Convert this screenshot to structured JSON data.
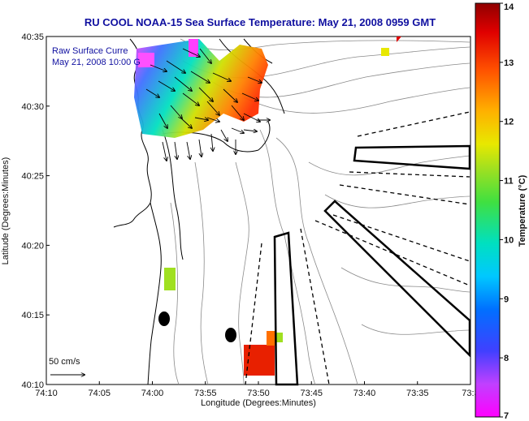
{
  "title": "RU COOL  NOAA-15  Sea Surface Temperature:  May 21, 2008 0959 GMT",
  "overlay": {
    "line1": "Raw Surface Curre",
    "line2": "May 21, 2008 10:00 G"
  },
  "scale_label": "50 cm/s",
  "axes": {
    "xlabel": "Longitude (Degrees:Minutes)",
    "ylabel": "Latitude (Degrees:Minutes)",
    "xticks": [
      "74:10",
      "74:05",
      "74:00",
      "73:55",
      "73:50",
      "73:45",
      "73:40",
      "73:35",
      "73:3"
    ],
    "yticks": [
      "40:35",
      "40:30",
      "40:25",
      "40:20",
      "40:15",
      "40:10"
    ]
  },
  "colorbar": {
    "label": "Temperature (°C)",
    "ticks": [
      "14",
      "13",
      "12",
      "11",
      "10",
      "9",
      "8",
      "7"
    ],
    "min": 7,
    "max": 14
  },
  "colors": {
    "title": "#1010a0",
    "coast": "#000000",
    "bathymetry": "#909090"
  }
}
